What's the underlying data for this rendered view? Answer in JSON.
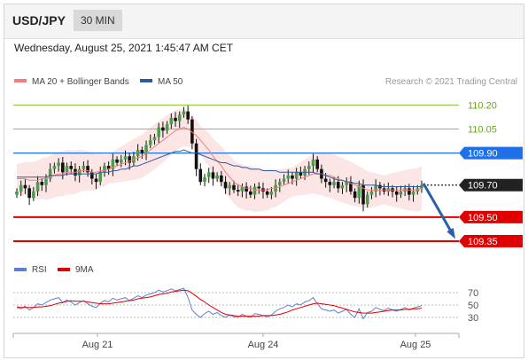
{
  "header": {
    "symbol": "USD/JPY",
    "timeframe": "30 MIN"
  },
  "timestamp": "Wednesday, August 25, 2021 1:45:47 AM CET",
  "copyright": "Research © 2021 Trading Central",
  "colors": {
    "ma20": "#f08080",
    "ma50": "#2e5c99",
    "bullish": "#000000",
    "resistance_blue": "#1f6fe8",
    "support_red": "#e00000",
    "green": "#8dc63f",
    "pivot": "#222222",
    "rsi": "#5f7fd0",
    "ma9": "#e00000",
    "arrow": "#2b5fa8"
  },
  "chart_data": [
    {
      "type": "candlestick",
      "legend": [
        {
          "name": "MA 20 + Bollinger Bands",
          "color": "#f08080"
        },
        {
          "name": "MA 50",
          "color": "#2e5c99"
        }
      ],
      "x_ticks": [
        "Aug 21",
        "Aug 24",
        "Aug 25"
      ],
      "ylim": [
        109.25,
        110.28
      ],
      "levels": [
        {
          "value": 110.2,
          "label": "110.20",
          "kind": "resistance",
          "color": "#8dc63f"
        },
        {
          "value": 110.05,
          "label": "110.05",
          "kind": "resistance",
          "color": "#8dc63f"
        },
        {
          "value": 109.9,
          "label": "109.90",
          "kind": "resistance",
          "color": "#1f6fe8"
        },
        {
          "value": 109.7,
          "label": "109.70",
          "kind": "pivot",
          "color": "#222222"
        },
        {
          "value": 109.5,
          "label": "109.50",
          "kind": "support",
          "color": "#e00000"
        },
        {
          "value": 109.35,
          "label": "109.35",
          "kind": "support",
          "color": "#e00000"
        }
      ],
      "close": [
        109.66,
        109.7,
        109.68,
        109.62,
        109.66,
        109.72,
        109.7,
        109.74,
        109.8,
        109.82,
        109.84,
        109.78,
        109.82,
        109.8,
        109.76,
        109.8,
        109.82,
        109.78,
        109.74,
        109.72,
        109.78,
        109.82,
        109.8,
        109.86,
        109.84,
        109.86,
        109.88,
        109.84,
        109.88,
        109.92,
        109.9,
        109.95,
        109.98,
        110.0,
        110.06,
        110.04,
        110.08,
        110.12,
        110.1,
        110.14,
        110.16,
        110.11,
        109.96,
        109.8,
        109.72,
        109.75,
        109.78,
        109.74,
        109.76,
        109.72,
        109.68,
        109.7,
        109.67,
        109.66,
        109.69,
        109.66,
        109.64,
        109.69,
        109.68,
        109.66,
        109.64,
        109.66,
        109.7,
        109.72,
        109.74,
        109.76,
        109.74,
        109.78,
        109.76,
        109.8,
        109.82,
        109.86,
        109.8,
        109.74,
        109.72,
        109.7,
        109.72,
        109.68,
        109.7,
        109.72,
        109.66,
        109.62,
        109.7,
        109.58,
        109.64,
        109.66,
        109.7,
        109.68,
        109.66,
        109.68,
        109.66,
        109.64,
        109.66,
        109.68,
        109.64,
        109.66,
        109.68,
        109.7
      ],
      "ma20": [
        109.74,
        109.74,
        109.74,
        109.73,
        109.73,
        109.73,
        109.74,
        109.74,
        109.75,
        109.76,
        109.77,
        109.77,
        109.78,
        109.78,
        109.78,
        109.79,
        109.79,
        109.79,
        109.78,
        109.78,
        109.79,
        109.79,
        109.8,
        109.81,
        109.82,
        109.83,
        109.84,
        109.85,
        109.86,
        109.87,
        109.88,
        109.9,
        109.92,
        109.94,
        109.96,
        109.98,
        110.0,
        110.02,
        110.04,
        110.05,
        110.06,
        110.05,
        110.03,
        110.01,
        109.98,
        109.95,
        109.92,
        109.88,
        109.85,
        109.82,
        109.78,
        109.75,
        109.72,
        109.7,
        109.69,
        109.68,
        109.68,
        109.67,
        109.67,
        109.67,
        109.67,
        109.68,
        109.68,
        109.69,
        109.7,
        109.71,
        109.72,
        109.73,
        109.74,
        109.75,
        109.76,
        109.77,
        109.77,
        109.77,
        109.76,
        109.76,
        109.75,
        109.74,
        109.73,
        109.72,
        109.71,
        109.7,
        109.69,
        109.68,
        109.67,
        109.67,
        109.67,
        109.67,
        109.67,
        109.67,
        109.67,
        109.67,
        109.67,
        109.67,
        109.67,
        109.67,
        109.67,
        109.68
      ],
      "ma50": [
        109.75,
        109.75,
        109.75,
        109.75,
        109.75,
        109.75,
        109.75,
        109.75,
        109.76,
        109.76,
        109.76,
        109.76,
        109.77,
        109.77,
        109.77,
        109.77,
        109.77,
        109.77,
        109.77,
        109.77,
        109.78,
        109.78,
        109.78,
        109.79,
        109.79,
        109.8,
        109.8,
        109.81,
        109.82,
        109.82,
        109.83,
        109.84,
        109.85,
        109.86,
        109.87,
        109.88,
        109.89,
        109.9,
        109.91,
        109.91,
        109.92,
        109.91,
        109.9,
        109.9,
        109.89,
        109.88,
        109.87,
        109.86,
        109.85,
        109.84,
        109.84,
        109.83,
        109.82,
        109.82,
        109.81,
        109.81,
        109.8,
        109.8,
        109.8,
        109.79,
        109.79,
        109.79,
        109.79,
        109.78,
        109.78,
        109.78,
        109.78,
        109.78,
        109.78,
        109.78,
        109.78,
        109.78,
        109.77,
        109.77,
        109.76,
        109.75,
        109.74,
        109.73,
        109.73,
        109.72,
        109.72,
        109.71,
        109.71,
        109.7,
        109.7,
        109.7,
        109.7,
        109.69,
        109.69,
        109.69,
        109.69,
        109.69,
        109.69,
        109.69,
        109.69,
        109.69,
        109.69,
        109.69
      ],
      "forecast": {
        "from": 109.71,
        "to": 109.35
      }
    },
    {
      "type": "line",
      "legend": [
        {
          "name": "RSI",
          "color": "#5f7fd0"
        },
        {
          "name": "9MA",
          "color": "#e00000"
        }
      ],
      "ylim": [
        10,
        90
      ],
      "ticks": [
        30,
        50,
        70
      ],
      "rsi": [
        46,
        44,
        48,
        42,
        46,
        52,
        50,
        54,
        58,
        60,
        62,
        54,
        58,
        55,
        50,
        54,
        57,
        52,
        48,
        46,
        53,
        57,
        55,
        61,
        58,
        60,
        62,
        57,
        61,
        65,
        62,
        66,
        68,
        70,
        74,
        71,
        73,
        76,
        73,
        75,
        77,
        62,
        42,
        35,
        30,
        36,
        40,
        35,
        38,
        33,
        30,
        34,
        31,
        30,
        35,
        32,
        30,
        36,
        35,
        33,
        31,
        34,
        40,
        44,
        46,
        50,
        47,
        52,
        50,
        55,
        57,
        62,
        52,
        44,
        42,
        40,
        42,
        37,
        40,
        43,
        35,
        30,
        44,
        28,
        38,
        40,
        46,
        43,
        41,
        45,
        42,
        40,
        43,
        46,
        42,
        45,
        47,
        49
      ],
      "ma9": [
        47,
        46,
        46,
        46,
        46,
        47,
        47,
        48,
        49,
        51,
        53,
        54,
        56,
        57,
        56,
        56,
        56,
        55,
        54,
        53,
        52,
        52,
        52,
        53,
        54,
        55,
        56,
        57,
        58,
        60,
        61,
        62,
        63,
        65,
        67,
        68,
        69,
        71,
        72,
        73,
        74,
        73,
        69,
        64,
        59,
        55,
        50,
        46,
        42,
        38,
        35,
        34,
        33,
        32,
        32,
        32,
        32,
        32,
        32,
        33,
        33,
        33,
        34,
        35,
        37,
        39,
        42,
        44,
        46,
        48,
        50,
        52,
        53,
        52,
        51,
        50,
        49,
        47,
        45,
        43,
        41,
        39,
        38,
        37,
        37,
        37,
        38,
        39,
        40,
        41,
        42,
        42,
        42,
        43,
        43,
        44,
        44,
        45
      ]
    }
  ]
}
